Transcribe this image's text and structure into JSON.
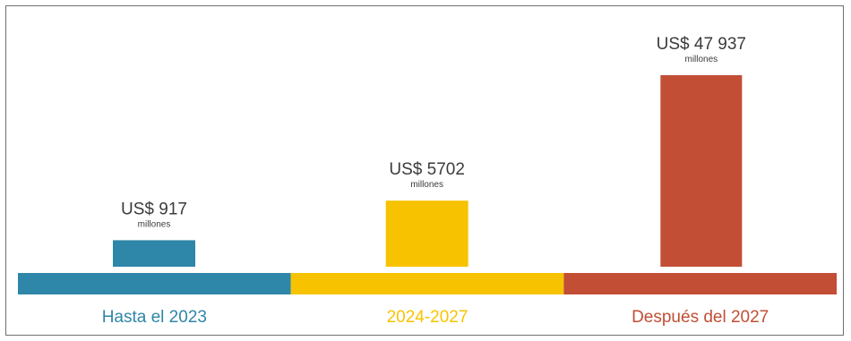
{
  "chart_data": {
    "type": "bar",
    "title": "",
    "xlabel": "",
    "ylabel": "",
    "categories": [
      "Hasta el 2023",
      "2024-2027",
      "Después del 2027"
    ],
    "values": [
      917,
      5702,
      47937
    ],
    "value_labels": [
      "US$ 917",
      "US$ 5702",
      "US$ 47 937"
    ],
    "unit_label": "millones",
    "colors": [
      "#2E86A8",
      "#F7C300",
      "#C24E36"
    ],
    "grid": false,
    "legend": "none"
  }
}
